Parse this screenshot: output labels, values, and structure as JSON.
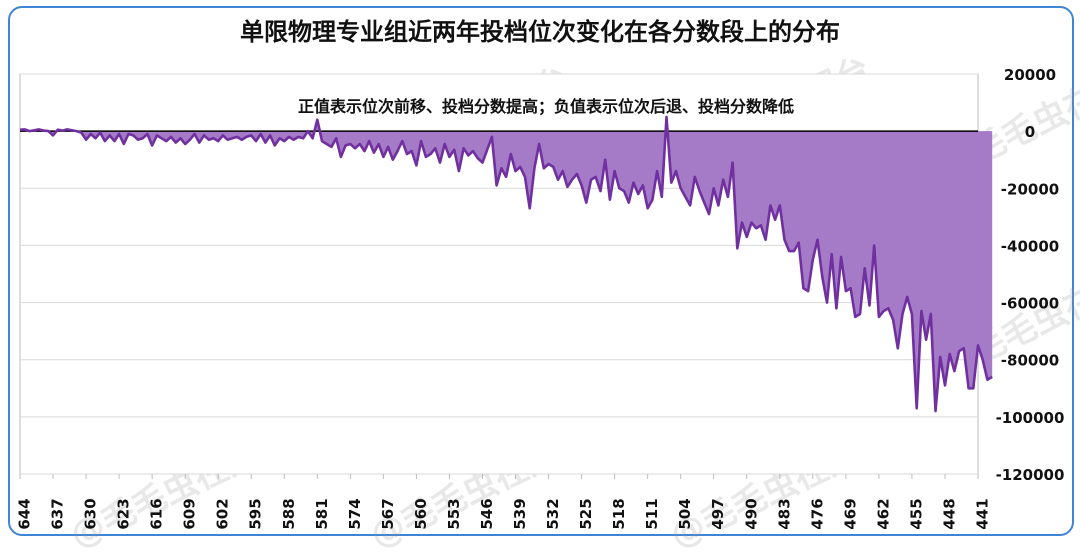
{
  "chart_data": {
    "type": "area",
    "title": "单限物理专业组近两年投档位次变化在各分数段上的分布",
    "annotation": "正值表示位次前移、投档分数提高；负值表示位次后退、投档分数降低",
    "x_tick_labels": [
      "644",
      "637",
      "630",
      "623",
      "616",
      "609",
      "602",
      "595",
      "588",
      "581",
      "574",
      "567",
      "560",
      "553",
      "546",
      "539",
      "532",
      "525",
      "518",
      "511",
      "504",
      "497",
      "490",
      "483",
      "476",
      "469",
      "462",
      "455",
      "448",
      "441"
    ],
    "x_range": [
      644,
      441
    ],
    "ylim": [
      -120000,
      20000
    ],
    "y_tick_labels": [
      "20000",
      "0",
      "-20000",
      "-40000",
      "-60000",
      "-80000",
      "-100000",
      "-120000"
    ],
    "y_axis_position": "right",
    "grid": true,
    "colors": {
      "line": "#7030a0",
      "fill": "#a57bc8",
      "title": "#111111",
      "frame": "#3f85d6"
    },
    "watermark": "@毛毛虫在烟台",
    "points": [
      [
        644,
        500
      ],
      [
        643,
        600
      ],
      [
        642,
        0
      ],
      [
        641,
        300
      ],
      [
        640,
        600
      ],
      [
        639,
        200
      ],
      [
        638,
        0
      ],
      [
        637,
        -1500
      ],
      [
        636,
        500
      ],
      [
        635,
        200
      ],
      [
        634,
        600
      ],
      [
        633,
        300
      ],
      [
        632,
        0
      ],
      [
        631,
        -500
      ],
      [
        630,
        -3000
      ],
      [
        629,
        -1000
      ],
      [
        628,
        -2500
      ],
      [
        627,
        -500
      ],
      [
        626,
        -3500
      ],
      [
        625,
        -1500
      ],
      [
        624,
        -3500
      ],
      [
        623,
        -1000
      ],
      [
        622,
        -4500
      ],
      [
        621,
        -1000
      ],
      [
        620,
        -1500
      ],
      [
        619,
        -3000
      ],
      [
        618,
        -2500
      ],
      [
        617,
        -1000
      ],
      [
        616,
        -5000
      ],
      [
        615,
        -1500
      ],
      [
        614,
        -2500
      ],
      [
        613,
        -3500
      ],
      [
        612,
        -2000
      ],
      [
        611,
        -4000
      ],
      [
        610,
        -2500
      ],
      [
        609,
        -4500
      ],
      [
        608,
        -3000
      ],
      [
        607,
        -1000
      ],
      [
        606,
        -4000
      ],
      [
        605,
        -1500
      ],
      [
        604,
        -3000
      ],
      [
        603,
        -2500
      ],
      [
        602,
        -3500
      ],
      [
        601,
        -1500
      ],
      [
        600,
        -3000
      ],
      [
        599,
        -2500
      ],
      [
        598,
        -2000
      ],
      [
        597,
        -3000
      ],
      [
        596,
        -2000
      ],
      [
        595,
        -1500
      ],
      [
        594,
        -3500
      ],
      [
        593,
        -1000
      ],
      [
        592,
        -4000
      ],
      [
        591,
        -1500
      ],
      [
        590,
        -5000
      ],
      [
        589,
        -2500
      ],
      [
        588,
        -3500
      ],
      [
        587,
        -2000
      ],
      [
        586,
        -3000
      ],
      [
        585,
        -2000
      ],
      [
        584,
        -2500
      ],
      [
        583,
        0
      ],
      [
        582,
        -2500
      ],
      [
        581,
        4000
      ],
      [
        580,
        -3500
      ],
      [
        579,
        -4500
      ],
      [
        578,
        -5500
      ],
      [
        577,
        -2500
      ],
      [
        576,
        -9000
      ],
      [
        575,
        -5000
      ],
      [
        574,
        -4500
      ],
      [
        573,
        -6000
      ],
      [
        572,
        -4500
      ],
      [
        571,
        -7000
      ],
      [
        570,
        -3500
      ],
      [
        569,
        -7500
      ],
      [
        568,
        -4500
      ],
      [
        567,
        -9000
      ],
      [
        566,
        -5500
      ],
      [
        565,
        -10000
      ],
      [
        564,
        -7000
      ],
      [
        563,
        -3500
      ],
      [
        562,
        -8000
      ],
      [
        561,
        -7000
      ],
      [
        560,
        -12000
      ],
      [
        559,
        -3500
      ],
      [
        558,
        -9000
      ],
      [
        557,
        -8000
      ],
      [
        556,
        -6000
      ],
      [
        555,
        -11000
      ],
      [
        554,
        -4500
      ],
      [
        553,
        -9000
      ],
      [
        552,
        -6500
      ],
      [
        551,
        -14000
      ],
      [
        550,
        -6000
      ],
      [
        549,
        -8500
      ],
      [
        548,
        -7000
      ],
      [
        547,
        -9500
      ],
      [
        546,
        -11000
      ],
      [
        545,
        -6500
      ],
      [
        544,
        -2000
      ],
      [
        543,
        -19000
      ],
      [
        542,
        -13000
      ],
      [
        541,
        -16000
      ],
      [
        540,
        -8000
      ],
      [
        539,
        -14000
      ],
      [
        538,
        -12500
      ],
      [
        537,
        -16000
      ],
      [
        536,
        -27000
      ],
      [
        535,
        -13000
      ],
      [
        534,
        -4500
      ],
      [
        533,
        -13000
      ],
      [
        532,
        -11500
      ],
      [
        531,
        -12500
      ],
      [
        530,
        -17000
      ],
      [
        529,
        -14000
      ],
      [
        528,
        -19500
      ],
      [
        527,
        -17000
      ],
      [
        526,
        -15000
      ],
      [
        525,
        -19000
      ],
      [
        524,
        -25000
      ],
      [
        523,
        -17000
      ],
      [
        522,
        -16000
      ],
      [
        521,
        -21000
      ],
      [
        520,
        -10000
      ],
      [
        519,
        -24000
      ],
      [
        518,
        -14000
      ],
      [
        517,
        -20000
      ],
      [
        516,
        -21000
      ],
      [
        515,
        -25000
      ],
      [
        514,
        -18000
      ],
      [
        513,
        -22000
      ],
      [
        512,
        -19000
      ],
      [
        511,
        -27000
      ],
      [
        510,
        -24000
      ],
      [
        509,
        -14000
      ],
      [
        508,
        -23000
      ],
      [
        507,
        5000
      ],
      [
        506,
        -18000
      ],
      [
        505,
        -14000
      ],
      [
        504,
        -20000
      ],
      [
        503,
        -23000
      ],
      [
        502,
        -26000
      ],
      [
        501,
        -16000
      ],
      [
        500,
        -21000
      ],
      [
        499,
        -25000
      ],
      [
        498,
        -29000
      ],
      [
        497,
        -20000
      ],
      [
        496,
        -26000
      ],
      [
        495,
        -17000
      ],
      [
        494,
        -23000
      ],
      [
        493,
        -11000
      ],
      [
        492,
        -41000
      ],
      [
        491,
        -32000
      ],
      [
        490,
        -37000
      ],
      [
        489,
        -32000
      ],
      [
        488,
        -34000
      ],
      [
        487,
        -33000
      ],
      [
        486,
        -38000
      ],
      [
        485,
        -26000
      ],
      [
        484,
        -31000
      ],
      [
        483,
        -26000
      ],
      [
        482,
        -38000
      ],
      [
        481,
        -42000
      ],
      [
        480,
        -42000
      ],
      [
        479,
        -39000
      ],
      [
        478,
        -55000
      ],
      [
        477,
        -56000
      ],
      [
        476,
        -45000
      ],
      [
        475,
        -38000
      ],
      [
        474,
        -51000
      ],
      [
        473,
        -60000
      ],
      [
        472,
        -43000
      ],
      [
        471,
        -62000
      ],
      [
        470,
        -44000
      ],
      [
        469,
        -56000
      ],
      [
        468,
        -55000
      ],
      [
        467,
        -65000
      ],
      [
        466,
        -64000
      ],
      [
        465,
        -48000
      ],
      [
        464,
        -61000
      ],
      [
        463,
        -40000
      ],
      [
        462,
        -65000
      ],
      [
        461,
        -63000
      ],
      [
        460,
        -62000
      ],
      [
        459,
        -66000
      ],
      [
        458,
        -76000
      ],
      [
        457,
        -64000
      ],
      [
        456,
        -58000
      ],
      [
        455,
        -64000
      ],
      [
        454,
        -97000
      ],
      [
        453,
        -63000
      ],
      [
        452,
        -73000
      ],
      [
        451,
        -64000
      ],
      [
        450,
        -98000
      ],
      [
        449,
        -79000
      ],
      [
        448,
        -89000
      ],
      [
        447,
        -78000
      ],
      [
        446,
        -84000
      ],
      [
        445,
        -77000
      ],
      [
        444,
        -76000
      ],
      [
        443,
        -90000
      ],
      [
        442,
        -90000
      ],
      [
        441,
        -75000
      ],
      [
        440,
        -80000
      ],
      [
        439,
        -87000
      ],
      [
        438,
        -86000
      ]
    ]
  }
}
